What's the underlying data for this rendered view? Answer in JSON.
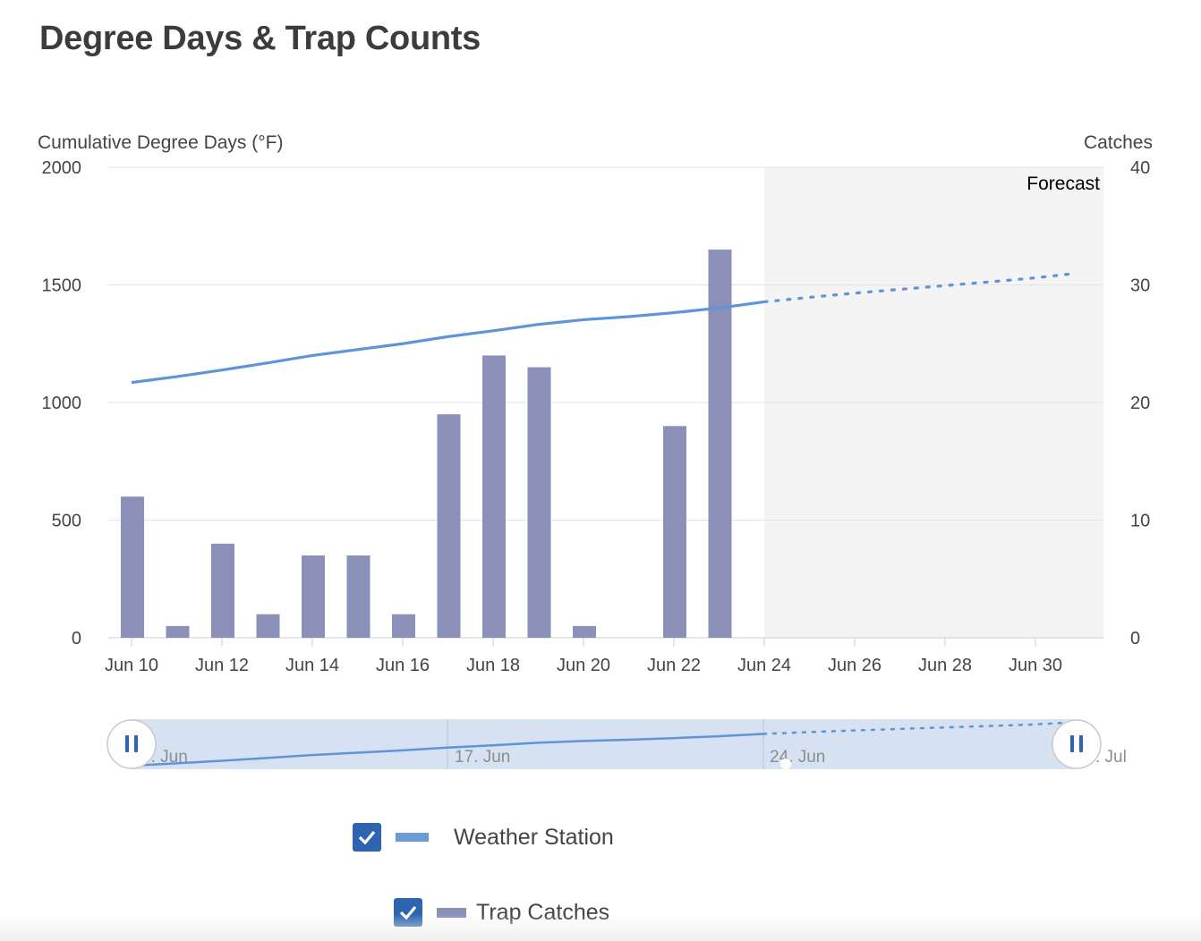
{
  "page": {
    "title": "Degree Days & Trap Counts"
  },
  "chart_data": {
    "type": "bar+line",
    "title": "Degree Days & Trap Counts",
    "y_left": {
      "label": "Cumulative Degree Days (°F)",
      "range": [
        0,
        2000
      ],
      "ticks": [
        0,
        500,
        1000,
        1500,
        2000
      ]
    },
    "y_right": {
      "label": "Catches",
      "range": [
        0,
        40
      ],
      "ticks": [
        0,
        10,
        20,
        30,
        40
      ]
    },
    "x": {
      "type": "date",
      "range": [
        "2021-06-09",
        "2021-07-01"
      ],
      "ticks": [
        "2021-06-10",
        "2021-06-12",
        "2021-06-14",
        "2021-06-16",
        "2021-06-18",
        "2021-06-20",
        "2021-06-22",
        "2021-06-24",
        "2021-06-26",
        "2021-06-28",
        "2021-06-30"
      ],
      "tick_labels": [
        "Jun 10",
        "Jun 12",
        "Jun 14",
        "Jun 16",
        "Jun 18",
        "Jun 20",
        "Jun 22",
        "Jun 24",
        "Jun 26",
        "Jun 28",
        "Jun 30"
      ]
    },
    "grid": true,
    "forecast_band": {
      "from": "2021-06-24",
      "to": "2021-07-01",
      "label": "Forecast"
    },
    "series": [
      {
        "name": "Weather Station",
        "type": "line",
        "axis": "left",
        "color": "#5f94d6",
        "points": [
          [
            "2021-06-10",
            1085
          ],
          [
            "2021-06-11",
            1110
          ],
          [
            "2021-06-12",
            1138
          ],
          [
            "2021-06-13",
            1168
          ],
          [
            "2021-06-14",
            1200
          ],
          [
            "2021-06-15",
            1225
          ],
          [
            "2021-06-16",
            1250
          ],
          [
            "2021-06-17",
            1280
          ],
          [
            "2021-06-18",
            1305
          ],
          [
            "2021-06-19",
            1332
          ],
          [
            "2021-06-20",
            1352
          ],
          [
            "2021-06-21",
            1365
          ],
          [
            "2021-06-22",
            1382
          ],
          [
            "2021-06-23",
            1402
          ],
          [
            "2021-06-24",
            1428
          ]
        ],
        "forecast_points": [
          [
            "2021-06-24",
            1428
          ],
          [
            "2021-06-25",
            1447
          ],
          [
            "2021-06-26",
            1465
          ],
          [
            "2021-06-27",
            1481
          ],
          [
            "2021-06-28",
            1497
          ],
          [
            "2021-06-29",
            1513
          ],
          [
            "2021-06-30",
            1530
          ],
          [
            "2021-07-01",
            1548
          ]
        ]
      },
      {
        "name": "Trap Catches",
        "type": "bar",
        "axis": "right",
        "color": "#8a90b8",
        "points": [
          [
            "2021-06-10",
            12
          ],
          [
            "2021-06-11",
            1
          ],
          [
            "2021-06-12",
            8
          ],
          [
            "2021-06-13",
            2
          ],
          [
            "2021-06-14",
            7
          ],
          [
            "2021-06-15",
            7
          ],
          [
            "2021-06-16",
            2
          ],
          [
            "2021-06-17",
            19
          ],
          [
            "2021-06-18",
            24
          ],
          [
            "2021-06-19",
            23
          ],
          [
            "2021-06-20",
            1
          ],
          [
            "2021-06-22",
            18
          ],
          [
            "2021-06-23",
            33
          ]
        ]
      }
    ],
    "navigator": {
      "labels": [
        "0. Jun",
        "17. Jun",
        "24. Jun",
        ". Jul"
      ],
      "handles": [
        "left-handle",
        "right-handle"
      ]
    }
  },
  "legend": [
    {
      "name": "Weather Station",
      "checked": true
    },
    {
      "name": "Trap Catches",
      "checked": true
    }
  ]
}
